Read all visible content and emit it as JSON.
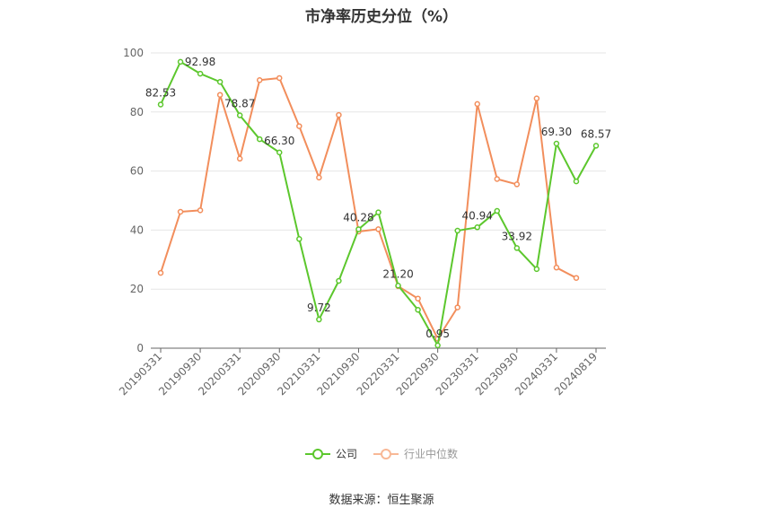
{
  "title": "市净率历史分位（%）",
  "source": "数据来源：恒生聚源",
  "chart_data": {
    "type": "line",
    "categories": [
      "20190331",
      "20190630",
      "20190930",
      "20191231",
      "20200331",
      "20200630",
      "20200930",
      "20201231",
      "20210331",
      "20210630",
      "20210930",
      "20211231",
      "20220331",
      "20220630",
      "20220930",
      "20221231",
      "20230331",
      "20230630",
      "20230930",
      "20231231",
      "20240331",
      "20240630",
      "20240819"
    ],
    "tick_labels": [
      "20190331",
      "20190930",
      "20200331",
      "20200930",
      "20210331",
      "20210930",
      "20220331",
      "20220930",
      "20230331",
      "20230930",
      "20240331",
      "20240819"
    ],
    "ylim": [
      0,
      100
    ],
    "yticks": [
      0,
      20,
      40,
      60,
      80,
      100
    ],
    "grid": true,
    "legend_position": "bottom",
    "series": [
      {
        "name": "公司",
        "color": "#5cc72d",
        "values": [
          82.53,
          97.0,
          92.98,
          90.2,
          78.87,
          70.8,
          66.3,
          37.0,
          9.72,
          22.8,
          40.28,
          46.0,
          21.2,
          13.0,
          0.95,
          39.8,
          40.94,
          46.5,
          33.92,
          26.8,
          69.3,
          56.5,
          68.57
        ],
        "labels": {
          "0": "82.53",
          "2": "92.98",
          "4": "78.87",
          "6": "66.30",
          "8": "9.72",
          "10": "40.28",
          "12": "21.20",
          "14": "0.95",
          "16": "40.94",
          "18": "33.92",
          "20": "69.30",
          "22": "68.57"
        }
      },
      {
        "name": "行业中位数",
        "color": "#f28e5c",
        "values": [
          25.5,
          46.2,
          46.7,
          85.8,
          64.2,
          90.8,
          91.5,
          75.2,
          57.8,
          79.0,
          39.5,
          40.3,
          21.0,
          16.8,
          3.2,
          13.8,
          82.7,
          57.3,
          55.5,
          84.6,
          27.3,
          23.8,
          null
        ]
      }
    ]
  }
}
